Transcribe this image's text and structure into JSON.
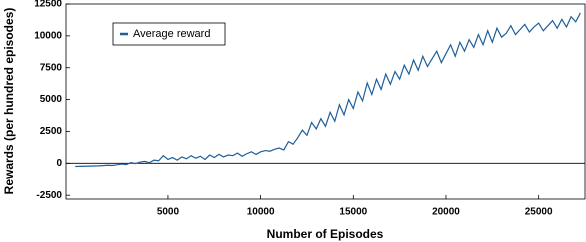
{
  "chart_data": {
    "type": "line",
    "xlabel": "Number of Episodes",
    "ylabel": "Rewards (per hundred episodes)",
    "legend": "upper left",
    "zero_line": true,
    "xlim": [
      -500,
      27500
    ],
    "ylim": [
      -2800,
      12500
    ],
    "xticks": [
      5000,
      10000,
      15000,
      20000,
      25000
    ],
    "yticks": [
      -2500,
      0,
      2500,
      5000,
      7500,
      10000,
      12500
    ],
    "x": [
      0,
      250,
      500,
      750,
      1000,
      1250,
      1500,
      1750,
      2000,
      2250,
      2500,
      2750,
      3000,
      3250,
      3500,
      3750,
      4000,
      4250,
      4500,
      4750,
      5000,
      5250,
      5500,
      5750,
      6000,
      6250,
      6500,
      6750,
      7000,
      7250,
      7500,
      7750,
      8000,
      8250,
      8500,
      8750,
      9000,
      9250,
      9500,
      9750,
      10000,
      10250,
      10500,
      10750,
      11000,
      11250,
      11500,
      11750,
      12000,
      12250,
      12500,
      12750,
      13000,
      13250,
      13500,
      13750,
      14000,
      14250,
      14500,
      14750,
      15000,
      15250,
      15500,
      15750,
      16000,
      16250,
      16500,
      16750,
      17000,
      17250,
      17500,
      17750,
      18000,
      18250,
      18500,
      18750,
      19000,
      19250,
      19500,
      19750,
      20000,
      20250,
      20500,
      20750,
      21000,
      21250,
      21500,
      21750,
      22000,
      22250,
      22500,
      22750,
      23000,
      23250,
      23500,
      23750,
      24000,
      24250,
      24500,
      24750,
      25000,
      25250,
      25500,
      25750,
      26000,
      26250,
      26500,
      26750,
      27000,
      27250
    ],
    "series": [
      {
        "name": "Average reward",
        "color": "#1f5f9a",
        "values": [
          -250,
          -240,
          -230,
          -220,
          -210,
          -200,
          -180,
          -150,
          -170,
          -120,
          -60,
          -100,
          50,
          -20,
          100,
          150,
          50,
          250,
          200,
          600,
          300,
          450,
          250,
          500,
          350,
          600,
          400,
          550,
          300,
          650,
          450,
          700,
          500,
          650,
          600,
          800,
          550,
          750,
          900,
          700,
          900,
          1000,
          950,
          1100,
          1200,
          1050,
          1700,
          1500,
          2000,
          2600,
          2200,
          3200,
          2700,
          3500,
          2900,
          4000,
          3300,
          4600,
          3800,
          5000,
          4300,
          5600,
          4900,
          6300,
          5400,
          6600,
          5800,
          7000,
          6200,
          7200,
          6600,
          7700,
          7000,
          8100,
          7300,
          8400,
          7600,
          8200,
          8800,
          7900,
          8600,
          9300,
          8400,
          9500,
          8800,
          9700,
          9100,
          10100,
          9300,
          10400,
          9500,
          10600,
          9900,
          10200,
          10800,
          10100,
          10500,
          10900,
          10300,
          10700,
          11000,
          10400,
          10800,
          11200,
          10600,
          11300,
          10700,
          11500,
          11100,
          11800
        ]
      }
    ]
  }
}
